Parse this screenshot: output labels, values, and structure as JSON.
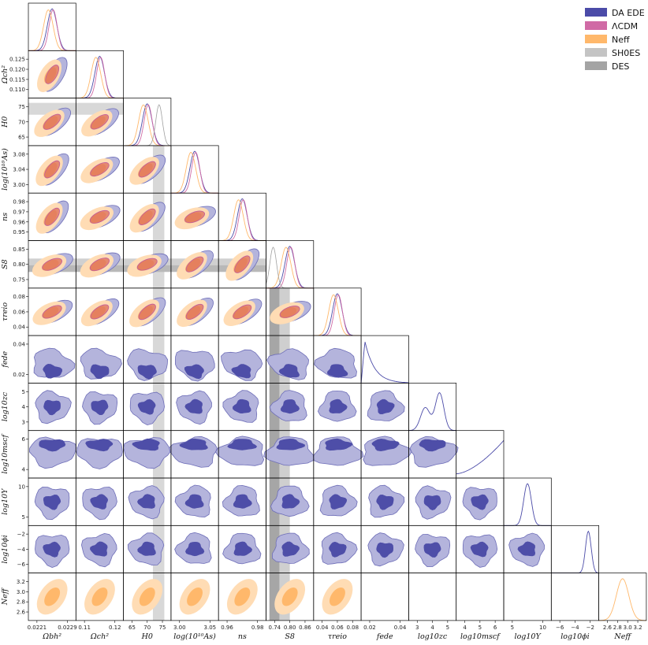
{
  "chart_data": {
    "type": "triangle-corner",
    "parameters": [
      {
        "key": "omega_b",
        "label": "Ωbh²",
        "ticks": [
          "0.0221",
          "0.0229"
        ]
      },
      {
        "key": "omega_c",
        "label": "Ωch²",
        "ticks": [
          "0.11",
          "0.12"
        ]
      },
      {
        "key": "H0",
        "label": "H0",
        "ticks": [
          "65",
          "70",
          "75"
        ]
      },
      {
        "key": "logAs",
        "label": "log(10¹⁰As)",
        "ticks": [
          "3.00",
          "3.05"
        ]
      },
      {
        "key": "ns",
        "label": "ns",
        "ticks": [
          "0.96",
          "0.98"
        ]
      },
      {
        "key": "S8",
        "label": "S8",
        "ticks": [
          "0.74",
          "0.80",
          "0.86"
        ]
      },
      {
        "key": "tau",
        "label": "τreio",
        "ticks": [
          "0.04",
          "0.06",
          "0.08"
        ]
      },
      {
        "key": "fede",
        "label": "fede",
        "ticks": [
          "0.02",
          "0.04"
        ]
      },
      {
        "key": "log10zc",
        "label": "log10zc",
        "ticks": [
          "3",
          "4",
          "5"
        ]
      },
      {
        "key": "log10mscf",
        "label": "log10mscf",
        "ticks": [
          "4",
          "5",
          "6"
        ]
      },
      {
        "key": "log10Y",
        "label": "log10Y",
        "ticks": [
          "5",
          "10"
        ]
      },
      {
        "key": "log10phi",
        "label": "log10ϕi",
        "ticks": [
          "−6",
          "−4",
          "−2"
        ]
      },
      {
        "key": "Neff",
        "label": "Neff",
        "ticks": [
          "2.6",
          "2.8",
          "3.0",
          "3.2"
        ]
      }
    ],
    "row_labels": [
      {
        "row": 1,
        "label": "Ωch²",
        "ticks": [
          "0.125",
          "0.120",
          "0.115",
          "0.110"
        ]
      },
      {
        "row": 2,
        "label": "H0",
        "ticks": [
          "75",
          "70",
          "65"
        ]
      },
      {
        "row": 3,
        "label": "log(10¹⁰As)",
        "ticks": [
          "3.08",
          "3.04",
          "3.00"
        ]
      },
      {
        "row": 4,
        "label": "ns",
        "ticks": [
          "0.98",
          "0.97",
          "0.96",
          "0.95"
        ]
      },
      {
        "row": 5,
        "label": "S8",
        "ticks": [
          "0.85",
          "0.80",
          "0.75"
        ]
      },
      {
        "row": 6,
        "label": "τreio",
        "ticks": [
          "0.08",
          "0.06",
          "0.04"
        ]
      },
      {
        "row": 7,
        "label": "fede",
        "ticks": [
          "0.04",
          "0.02"
        ]
      },
      {
        "row": 8,
        "label": "log10zc",
        "ticks": [
          "5",
          "4",
          "3"
        ]
      },
      {
        "row": 9,
        "label": "log10mscf",
        "ticks": [
          "6",
          "4"
        ]
      },
      {
        "row": 10,
        "label": "log10Y",
        "ticks": [
          "10",
          "5"
        ]
      },
      {
        "row": 11,
        "label": "log10ϕi",
        "ticks": [
          "−2",
          "−4",
          "−6"
        ]
      },
      {
        "row": 12,
        "label": "Neff",
        "ticks": [
          "3.2",
          "3.0",
          "2.8",
          "2.6"
        ]
      }
    ],
    "legend": [
      {
        "name": "DA EDE",
        "color": "#4b4ba8"
      },
      {
        "name": "ΛCDM",
        "color": "#d06aa5"
      },
      {
        "name": "Neff",
        "color": "#ffb86b"
      },
      {
        "name": "SH0ES",
        "color": "#c4c4c4"
      },
      {
        "name": "DES",
        "color": "#a4a4a4"
      }
    ],
    "legend_position": "top-right",
    "bands": {
      "SH0ES_H0": [
        71.8,
        74.8
      ],
      "DES_S8": [
        0.745,
        0.795
      ]
    },
    "series_present": {
      "DA EDE": "all parameters",
      "ΛCDM": "standard parameters (first 7)",
      "Neff": "standard parameters plus Neff"
    }
  }
}
